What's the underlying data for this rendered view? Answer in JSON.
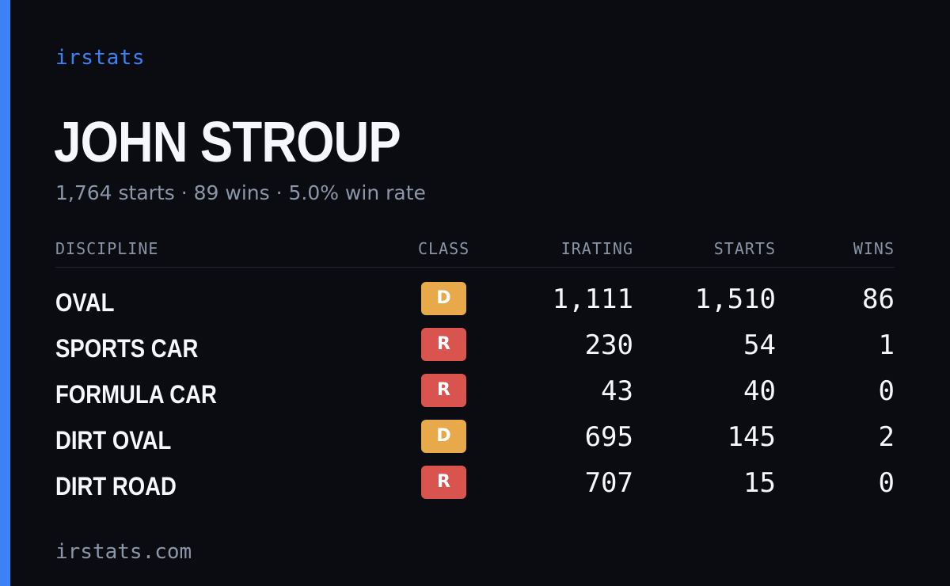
{
  "brand": "irstats",
  "driver": {
    "name": "JOHN STROUP",
    "summary": "1,764 starts · 89 wins · 5.0% win rate"
  },
  "table": {
    "headers": {
      "discipline": "DISCIPLINE",
      "class": "CLASS",
      "irating": "IRATING",
      "starts": "STARTS",
      "wins": "WINS"
    },
    "rows": [
      {
        "discipline": "OVAL",
        "class": "D",
        "class_color": "#e8a94a",
        "irating": "1,111",
        "starts": "1,510",
        "wins": "86"
      },
      {
        "discipline": "SPORTS CAR",
        "class": "R",
        "class_color": "#d9534f",
        "irating": "230",
        "starts": "54",
        "wins": "1"
      },
      {
        "discipline": "FORMULA CAR",
        "class": "R",
        "class_color": "#d9534f",
        "irating": "43",
        "starts": "40",
        "wins": "0"
      },
      {
        "discipline": "DIRT OVAL",
        "class": "D",
        "class_color": "#e8a94a",
        "irating": "695",
        "starts": "145",
        "wins": "2"
      },
      {
        "discipline": "DIRT ROAD",
        "class": "R",
        "class_color": "#d9534f",
        "irating": "707",
        "starts": "15",
        "wins": "0"
      }
    ]
  },
  "footer": "irstats.com",
  "colors": {
    "background": "#0a0c12",
    "accent": "#3b82f6"
  }
}
